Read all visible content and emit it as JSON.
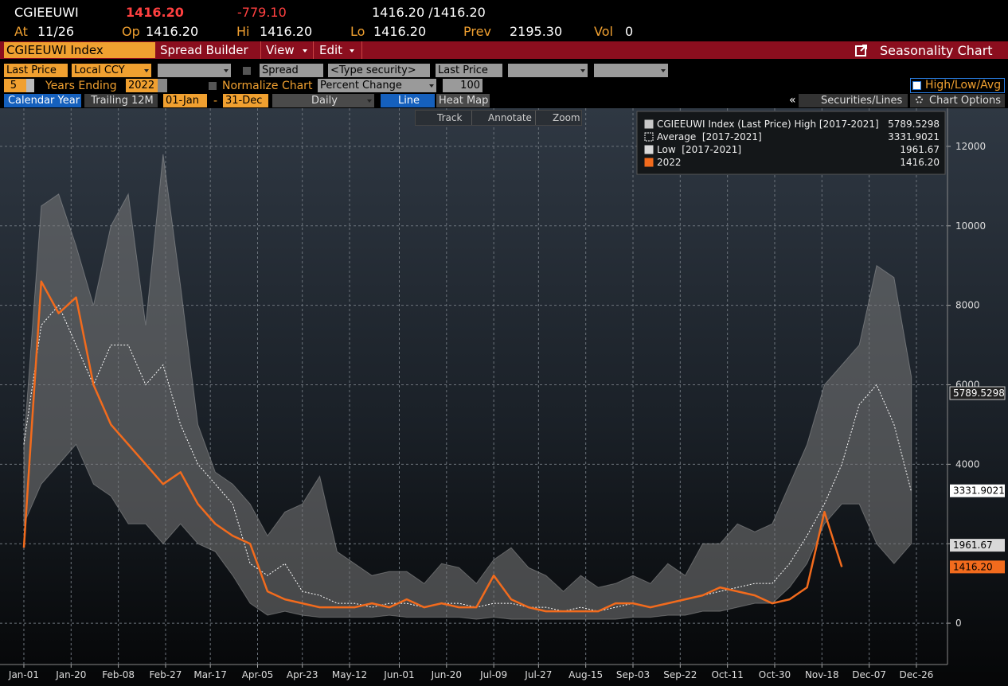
{
  "header": {
    "ticker": "CGIEEUWI",
    "price": "1416.20",
    "change": "-779.10",
    "bid_ask": "1416.20 /1416.20",
    "stats": [
      {
        "label": "At",
        "value": "11/26"
      },
      {
        "label": "Op",
        "value": "1416.20"
      },
      {
        "label": "Hi",
        "value": "1416.20"
      },
      {
        "label": "Lo",
        "value": "1416.20"
      },
      {
        "label": "Prev",
        "value": "2195.30"
      },
      {
        "label": "Vol",
        "value": "0"
      }
    ]
  },
  "menu": {
    "security": "CGIEEUWI Index",
    "items": [
      "Spread Builder",
      "View",
      "Edit"
    ],
    "function": "Seasonality Chart"
  },
  "toolbar": {
    "row1": {
      "field": "Last Price",
      "currency": "Local CCY",
      "spread": "Spread",
      "security": "<Type security>",
      "field2": "Last Price"
    },
    "row2": {
      "years": "5",
      "years_label": "Years Ending",
      "year_end": "2022",
      "normalize": "Normalize Chart",
      "mode": "Percent Change",
      "base": "100",
      "hla": "High/Low/Avg"
    },
    "row3": {
      "calendar": "Calendar Year",
      "trailing": "Trailing 12M",
      "start": "01-Jan",
      "dash": "-",
      "end": "31-Dec",
      "freq": "Daily",
      "line": "Line",
      "heatmap": "Heat Map",
      "collapse": "«",
      "securities": "Securities/Lines",
      "options": "Chart Options"
    }
  },
  "tools": [
    "Track",
    "Annotate",
    "Zoom"
  ],
  "chart_data": {
    "type": "line",
    "x": [
      0,
      7,
      14,
      21,
      28,
      35,
      42,
      49,
      56,
      63,
      70,
      77,
      84,
      91,
      98,
      105,
      112,
      119,
      126,
      133,
      140,
      147,
      154,
      161,
      168,
      175,
      182,
      189,
      196,
      203,
      210,
      217,
      224,
      231,
      238,
      245,
      252,
      259,
      266,
      273,
      280,
      287,
      294,
      301,
      308,
      315,
      322,
      329,
      336,
      343,
      350,
      357
    ],
    "xlim": [
      -9.6,
      371.5
    ],
    "xticks": [
      {
        "value": 0,
        "label": "Jan-01"
      },
      {
        "value": 19,
        "label": "Jan-20"
      },
      {
        "value": 38,
        "label": "Feb-08"
      },
      {
        "value": 57,
        "label": "Feb-27"
      },
      {
        "value": 75,
        "label": "Mar-17"
      },
      {
        "value": 94,
        "label": "Apr-05"
      },
      {
        "value": 112,
        "label": "Apr-23"
      },
      {
        "value": 131,
        "label": "May-12"
      },
      {
        "value": 151,
        "label": "Jun-01"
      },
      {
        "value": 170,
        "label": "Jun-20"
      },
      {
        "value": 189,
        "label": "Jul-09"
      },
      {
        "value": 207,
        "label": "Jul-27"
      },
      {
        "value": 226,
        "label": "Aug-15"
      },
      {
        "value": 245,
        "label": "Sep-03"
      },
      {
        "value": 264,
        "label": "Sep-22"
      },
      {
        "value": 283,
        "label": "Oct-11"
      },
      {
        "value": 302,
        "label": "Oct-30"
      },
      {
        "value": 321,
        "label": "Nov-18"
      },
      {
        "value": 340,
        "label": "Dec-07"
      },
      {
        "value": 359,
        "label": "Dec-26"
      }
    ],
    "ylim": [
      -1040,
      12960
    ],
    "yticks": [
      0,
      2000,
      4000,
      6000,
      8000,
      10000,
      12000
    ],
    "grid": true,
    "series": [
      {
        "name": "CGIEEUWI Index (Last Price) High [2017-2021]",
        "color": "#c8c8c8",
        "last_value": 5789.5298,
        "last_label": "5789.5298",
        "values": [
          4500,
          10500,
          10800,
          9500,
          8000,
          10000,
          10800,
          7500,
          11800,
          8500,
          5000,
          3800,
          3500,
          3000,
          2200,
          2800,
          3000,
          3700,
          1800,
          1500,
          1200,
          1300,
          1300,
          1000,
          1500,
          1400,
          1000,
          1600,
          1900,
          1400,
          1200,
          800,
          1200,
          900,
          1000,
          1200,
          1000,
          1500,
          1200,
          2000,
          2000,
          2500,
          2300,
          2500,
          3500,
          4500,
          6000,
          6500,
          7000,
          9000,
          8700,
          6200
        ]
      },
      {
        "name": "Average  [2017-2021]",
        "color": "#ffffff",
        "last_value": 3331.9021,
        "last_label": "3331.9021",
        "values": [
          4500,
          7500,
          8000,
          7000,
          6000,
          7000,
          7000,
          6000,
          6500,
          5000,
          4000,
          3500,
          3000,
          1500,
          1200,
          1500,
          800,
          700,
          500,
          500,
          400,
          500,
          500,
          400,
          500,
          500,
          400,
          500,
          500,
          400,
          400,
          300,
          400,
          300,
          400,
          500,
          400,
          500,
          600,
          700,
          800,
          900,
          1000,
          1000,
          1500,
          2200,
          3000,
          4000,
          5500,
          6000,
          5000,
          3300
        ]
      },
      {
        "name": "Low  [2017-2021]",
        "color": "#d9d9d9",
        "last_value": 1961.67,
        "last_label": "1961.67",
        "values": [
          2500,
          3500,
          4000,
          4500,
          3500,
          3200,
          2500,
          2500,
          2000,
          2500,
          2000,
          1800,
          1200,
          500,
          200,
          300,
          200,
          150,
          150,
          150,
          150,
          200,
          150,
          150,
          150,
          150,
          100,
          150,
          100,
          100,
          100,
          100,
          100,
          100,
          100,
          150,
          150,
          200,
          200,
          300,
          300,
          400,
          500,
          500,
          900,
          1500,
          2500,
          3000,
          3000,
          2000,
          1500,
          2000
        ]
      },
      {
        "name": "2022",
        "color": "#f26b1d",
        "last_value": 1416.2,
        "last_label": "1416.20",
        "values": [
          1900,
          8600,
          7800,
          8200,
          6000,
          5000,
          4500,
          4000,
          3500,
          3800,
          3000,
          2500,
          2200,
          2000,
          800,
          600,
          500,
          400,
          400,
          400,
          500,
          400,
          600,
          400,
          500,
          400,
          400,
          1200,
          600,
          400,
          300,
          300,
          300,
          300,
          500,
          500,
          400,
          500,
          600,
          700,
          900,
          800,
          700,
          500,
          600,
          900,
          2800,
          1416.2,
          null,
          null,
          null,
          null
        ]
      }
    ]
  }
}
